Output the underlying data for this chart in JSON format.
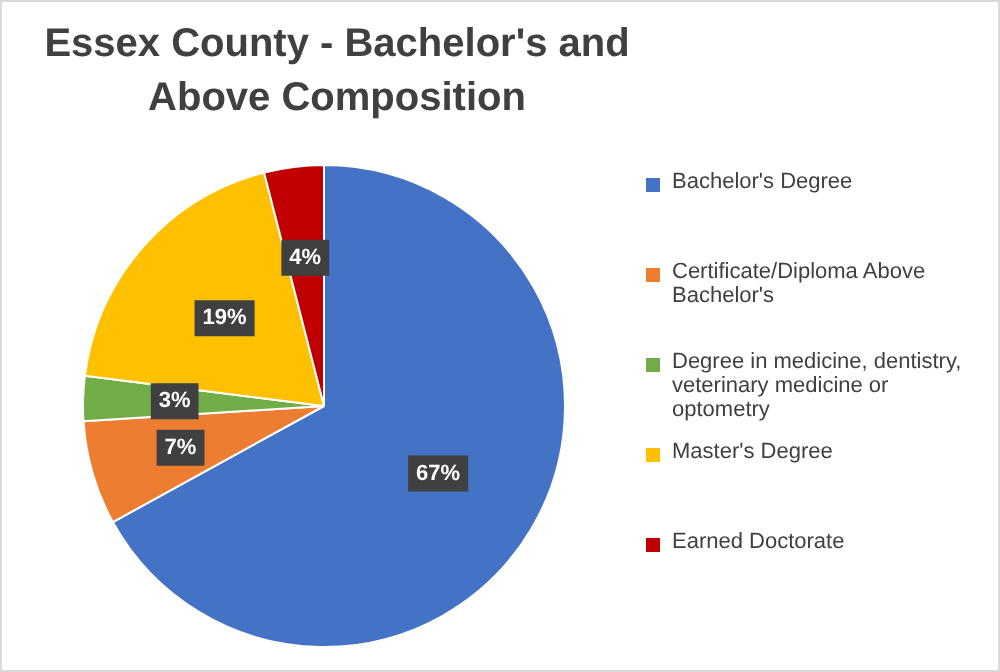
{
  "chart_data": {
    "type": "pie",
    "title": "Essex County - Bachelor's and Above Composition",
    "categories": [
      "Bachelor's Degree",
      "Certificate/Diploma Above Bachelor's",
      "Degree in medicine, dentistry, veterinary medicine or optometry",
      "Master's Degree",
      "Earned Doctorate"
    ],
    "values": [
      67,
      7,
      3,
      19,
      4
    ],
    "colors": [
      "#4472c4",
      "#ed7d31",
      "#70ad47",
      "#ffc000",
      "#c00000"
    ],
    "value_labels": [
      "67%",
      "7%",
      "3%",
      "19%",
      "4%"
    ],
    "legend": "right"
  }
}
